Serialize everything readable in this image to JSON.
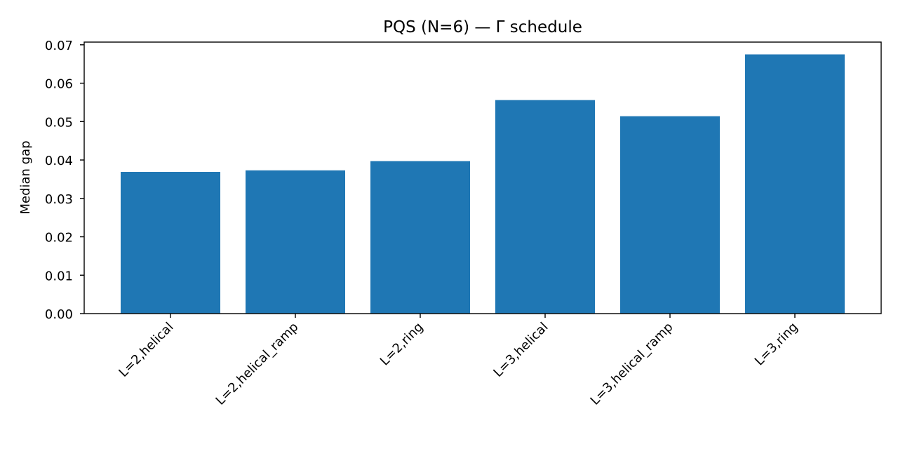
{
  "chart_data": {
    "type": "bar",
    "title": "PQS (N=6) — Γ schedule",
    "xlabel": "",
    "ylabel": "Median gap",
    "categories": [
      "L=2,helical",
      "L=2,helical_ramp",
      "L=2,ring",
      "L=3,helical",
      "L=3,helical_ramp",
      "L=3,ring"
    ],
    "values": [
      0.0369,
      0.0373,
      0.0397,
      0.0556,
      0.0514,
      0.0675
    ],
    "ylim": [
      0,
      0.0707
    ],
    "yticks": [
      "0.00",
      "0.01",
      "0.02",
      "0.03",
      "0.04",
      "0.05",
      "0.06",
      "0.07"
    ],
    "bar_color": "#1f77b4",
    "grid": false
  }
}
